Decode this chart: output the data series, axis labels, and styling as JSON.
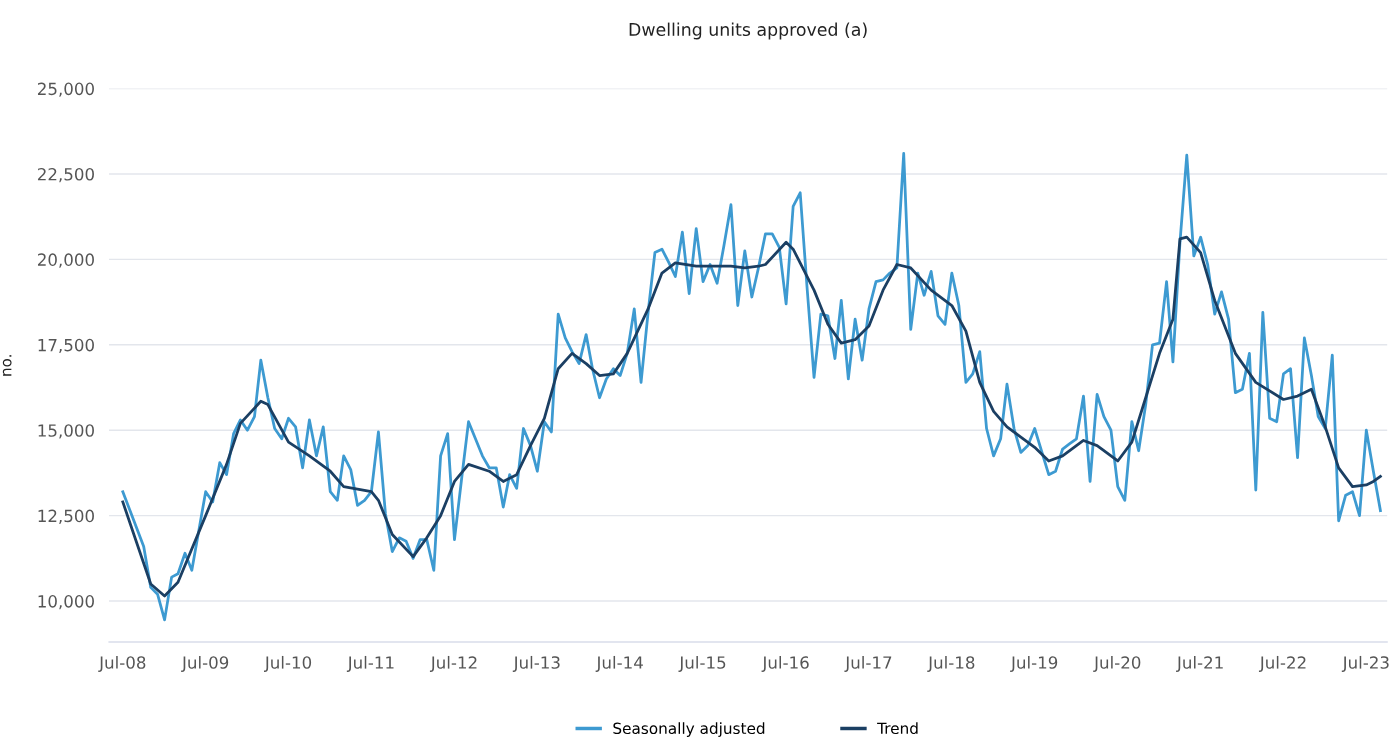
{
  "chart_data": {
    "type": "line",
    "title": "Dwelling units approved (a)",
    "ylabel": "no.",
    "xlim": [
      "2008-05",
      "2023-10"
    ],
    "ylim": [
      8800,
      25000
    ],
    "xticks": [
      {
        "value": "2008-07",
        "label": "Jul-08"
      },
      {
        "value": "2009-07",
        "label": "Jul-09"
      },
      {
        "value": "2010-07",
        "label": "Jul-10"
      },
      {
        "value": "2011-07",
        "label": "Jul-11"
      },
      {
        "value": "2012-07",
        "label": "Jul-12"
      },
      {
        "value": "2013-07",
        "label": "Jul-13"
      },
      {
        "value": "2014-07",
        "label": "Jul-14"
      },
      {
        "value": "2015-07",
        "label": "Jul-15"
      },
      {
        "value": "2016-07",
        "label": "Jul-16"
      },
      {
        "value": "2017-07",
        "label": "Jul-17"
      },
      {
        "value": "2018-07",
        "label": "Jul-18"
      },
      {
        "value": "2019-07",
        "label": "Jul-19"
      },
      {
        "value": "2020-07",
        "label": "Jul-20"
      },
      {
        "value": "2021-07",
        "label": "Jul-21"
      },
      {
        "value": "2022-07",
        "label": "Jul-22"
      },
      {
        "value": "2023-07",
        "label": "Jul-23"
      }
    ],
    "yticks": [
      {
        "value": 10000,
        "label": "10,000"
      },
      {
        "value": 12500,
        "label": "12,500"
      },
      {
        "value": 15000,
        "label": "15,000"
      },
      {
        "value": 17500,
        "label": "17,500"
      },
      {
        "value": 20000,
        "label": "20,000"
      },
      {
        "value": 22500,
        "label": "22,500"
      },
      {
        "value": 25000,
        "label": "25,000"
      }
    ],
    "grid": "y",
    "legend": "bottom",
    "marker": "none",
    "line_style": "solid",
    "series": [
      {
        "name": "Seasonally adjusted",
        "color": "#3d9ad1",
        "x": [
          "2008-07",
          "2008-10",
          "2008-11",
          "2008-12",
          "2009-01",
          "2009-02",
          "2009-03",
          "2009-04",
          "2009-05",
          "2009-07",
          "2009-08",
          "2009-09",
          "2009-10",
          "2009-11",
          "2009-12",
          "2010-01",
          "2010-02",
          "2010-03",
          "2010-04",
          "2010-05",
          "2010-06",
          "2010-07",
          "2010-08",
          "2010-09",
          "2010-10",
          "2010-11",
          "2010-12",
          "2011-01",
          "2011-02",
          "2011-03",
          "2011-04",
          "2011-05",
          "2011-06",
          "2011-07",
          "2011-08",
          "2011-09",
          "2011-10",
          "2011-11",
          "2011-12",
          "2012-01",
          "2012-02",
          "2012-03",
          "2012-04",
          "2012-05",
          "2012-06",
          "2012-07",
          "2012-08",
          "2012-09",
          "2012-11",
          "2012-12",
          "2013-01",
          "2013-02",
          "2013-03",
          "2013-04",
          "2013-05",
          "2013-06",
          "2013-07",
          "2013-08",
          "2013-09",
          "2013-10",
          "2013-11",
          "2013-12",
          "2014-01",
          "2014-02",
          "2014-03",
          "2014-04",
          "2014-05",
          "2014-06",
          "2014-07",
          "2014-08",
          "2014-09",
          "2014-10",
          "2014-11",
          "2014-12",
          "2015-01",
          "2015-02",
          "2015-03",
          "2015-04",
          "2015-05",
          "2015-06",
          "2015-07",
          "2015-08",
          "2015-09",
          "2015-10",
          "2015-11",
          "2015-12",
          "2016-01",
          "2016-02",
          "2016-03",
          "2016-04",
          "2016-05",
          "2016-06",
          "2016-07",
          "2016-08",
          "2016-09",
          "2016-10",
          "2016-11",
          "2016-12",
          "2017-01",
          "2017-02",
          "2017-03",
          "2017-04",
          "2017-05",
          "2017-06",
          "2017-07",
          "2017-08",
          "2017-09",
          "2017-10",
          "2017-11",
          "2017-12",
          "2018-01",
          "2018-02",
          "2018-03",
          "2018-04",
          "2018-05",
          "2018-06",
          "2018-07",
          "2018-08",
          "2018-09",
          "2018-10",
          "2018-11",
          "2018-12",
          "2019-01",
          "2019-02",
          "2019-03",
          "2019-04",
          "2019-05",
          "2019-06",
          "2019-07",
          "2019-09",
          "2019-10",
          "2019-11",
          "2019-12",
          "2020-01",
          "2020-02",
          "2020-03",
          "2020-04",
          "2020-05",
          "2020-06",
          "2020-07",
          "2020-08",
          "2020-09",
          "2020-10",
          "2020-11",
          "2020-12",
          "2021-01",
          "2021-02",
          "2021-03",
          "2021-04",
          "2021-05",
          "2021-06",
          "2021-07",
          "2021-08",
          "2021-09",
          "2021-10",
          "2021-11",
          "2021-12",
          "2022-01",
          "2022-02",
          "2022-03",
          "2022-04",
          "2022-05",
          "2022-06",
          "2022-07",
          "2022-08",
          "2022-09",
          "2022-10",
          "2022-11",
          "2022-12",
          "2023-01",
          "2023-02",
          "2023-03",
          "2023-04",
          "2023-05",
          "2023-06",
          "2023-07",
          "2023-08",
          "2023-09"
        ],
        "values": [
          13200,
          11600,
          10400,
          10200,
          9450,
          10700,
          10800,
          11400,
          10900,
          13200,
          12900,
          14050,
          13700,
          14900,
          15300,
          15000,
          15400,
          17050,
          15950,
          15050,
          14750,
          15350,
          15100,
          13900,
          15300,
          14250,
          15100,
          13200,
          12950,
          14250,
          13850,
          12800,
          12950,
          13200,
          14950,
          12550,
          11450,
          11850,
          11750,
          11250,
          11800,
          11800,
          10900,
          14250,
          14900,
          11800,
          13550,
          15250,
          14250,
          13900,
          13900,
          12750,
          13700,
          13300,
          15050,
          14550,
          13800,
          15250,
          14950,
          18400,
          17700,
          17300,
          16950,
          17800,
          16800,
          15950,
          16500,
          16800,
          16600,
          17250,
          18550,
          16400,
          18450,
          20200,
          20300,
          19900,
          19500,
          20800,
          19000,
          20900,
          19350,
          19850,
          19300,
          20400,
          21600,
          18650,
          20250,
          18900,
          19750,
          20750,
          20750,
          20350,
          18700,
          21550,
          21950,
          19200,
          16550,
          18400,
          18350,
          17100,
          18800,
          16500,
          18250,
          17050,
          18550,
          19350,
          19400,
          19600,
          19750,
          23100,
          17950,
          19600,
          18950,
          19650,
          18350,
          18100,
          19600,
          18650,
          16400,
          16650,
          17300,
          15050,
          14250,
          14750,
          16350,
          15050,
          14350,
          14550,
          15050,
          13700,
          13800,
          14450,
          14600,
          14750,
          16000,
          13500,
          16050,
          15400,
          15000,
          13350,
          12950,
          15250,
          14400,
          15750,
          17500,
          17550,
          19350,
          17000,
          20500,
          23050,
          20100,
          20650,
          19850,
          18400,
          19050,
          18250,
          16100,
          16200,
          17250,
          13250,
          18450,
          15350,
          15250,
          16650,
          16800,
          14200,
          17700,
          16600,
          15400,
          15050,
          17200,
          12350,
          13100,
          13200,
          12500,
          15000,
          13800,
          12650
        ]
      },
      {
        "name": "Trend",
        "color": "#1b3f63",
        "x": [
          "2008-07",
          "2008-11",
          "2009-01",
          "2009-03",
          "2009-07",
          "2009-10",
          "2009-12",
          "2010-03",
          "2010-04",
          "2010-07",
          "2010-10",
          "2011-01",
          "2011-03",
          "2011-07",
          "2011-08",
          "2011-10",
          "2012-01",
          "2012-03",
          "2012-05",
          "2012-07",
          "2012-09",
          "2012-12",
          "2013-02",
          "2013-04",
          "2013-06",
          "2013-08",
          "2013-10",
          "2013-12",
          "2014-02",
          "2014-04",
          "2014-06",
          "2014-08",
          "2014-11",
          "2015-01",
          "2015-03",
          "2015-06",
          "2015-09",
          "2015-11",
          "2016-01",
          "2016-03",
          "2016-04",
          "2016-07",
          "2016-08",
          "2016-11",
          "2017-01",
          "2017-03",
          "2017-05",
          "2017-07",
          "2017-09",
          "2017-11",
          "2018-01",
          "2018-04",
          "2018-07",
          "2018-09",
          "2018-11",
          "2019-01",
          "2019-03",
          "2019-05",
          "2019-07",
          "2019-09",
          "2019-11",
          "2020-02",
          "2020-04",
          "2020-07",
          "2020-09",
          "2020-11",
          "2021-01",
          "2021-03",
          "2021-04",
          "2021-05",
          "2021-07",
          "2021-09",
          "2021-12",
          "2022-03",
          "2022-07",
          "2022-09",
          "2022-11",
          "2023-01",
          "2023-03",
          "2023-05",
          "2023-07",
          "2023-08",
          "2023-09"
        ],
        "values": [
          12900,
          10500,
          10150,
          10550,
          12500,
          14000,
          15200,
          15850,
          15750,
          14650,
          14250,
          13800,
          13350,
          13200,
          12950,
          11950,
          11300,
          11850,
          12500,
          13500,
          14000,
          13800,
          13500,
          13700,
          14550,
          15350,
          16800,
          17250,
          16950,
          16600,
          16650,
          17250,
          18550,
          19600,
          19900,
          19800,
          19800,
          19800,
          19750,
          19800,
          19850,
          20500,
          20300,
          19100,
          18100,
          17550,
          17650,
          18050,
          19100,
          19850,
          19750,
          19100,
          18650,
          17900,
          16400,
          15550,
          15100,
          14800,
          14500,
          14100,
          14250,
          14700,
          14550,
          14100,
          14650,
          15950,
          17250,
          18250,
          20600,
          20650,
          20200,
          18800,
          17250,
          16400,
          15900,
          16000,
          16200,
          15100,
          13900,
          13350,
          13400,
          13500,
          13650
        ]
      }
    ]
  }
}
